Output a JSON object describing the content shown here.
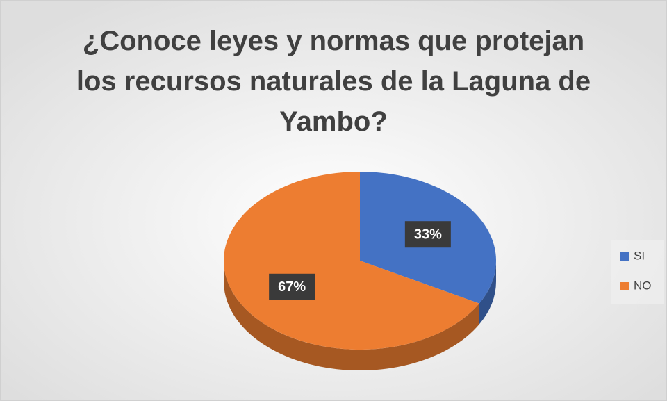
{
  "chart_data": {
    "type": "pie",
    "title": "¿Conoce leyes y normas que protejan los recursos naturales de la Laguna de Yambo?",
    "categories": [
      "SI",
      "NO"
    ],
    "values": [
      33,
      67
    ],
    "value_labels": [
      "33%",
      "67%"
    ],
    "colors": [
      "#4472c4",
      "#ed7d31"
    ],
    "legend": "right"
  }
}
